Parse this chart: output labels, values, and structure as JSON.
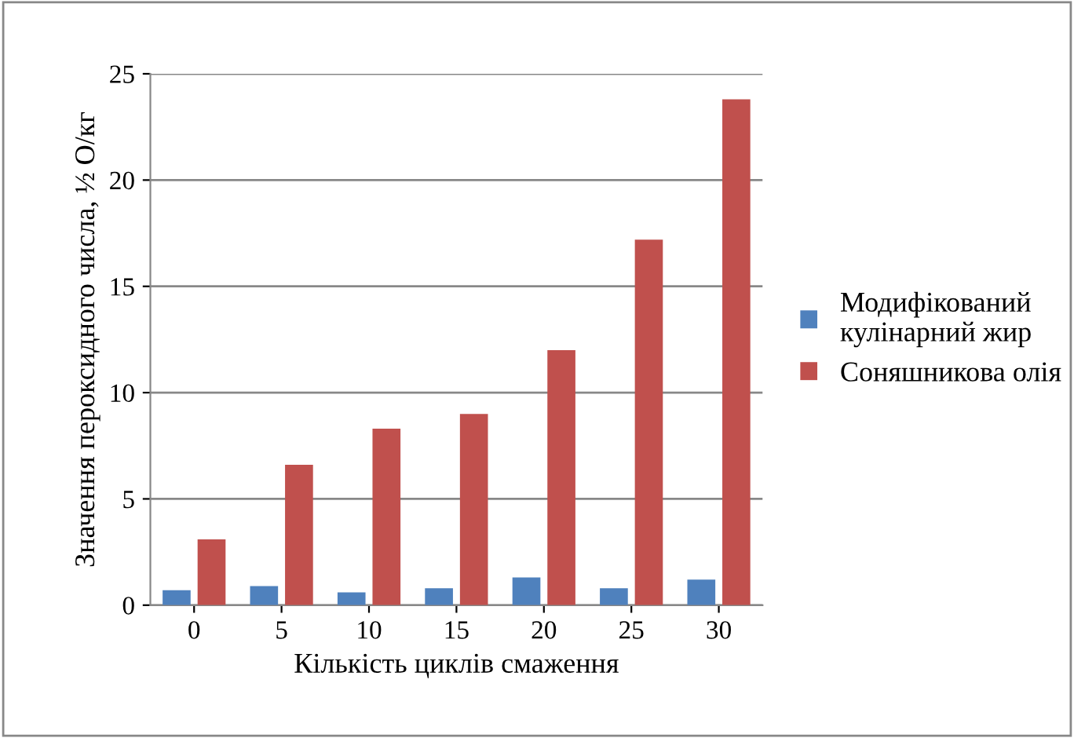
{
  "chart_data": {
    "type": "bar",
    "xlabel": "Кількість циклів смаження",
    "ylabel": "Значення пероксидного числа, ½ О/кг",
    "categories": [
      "0",
      "5",
      "10",
      "15",
      "20",
      "25",
      "30"
    ],
    "series": [
      {
        "name": "Модифікований кулінарний жир",
        "color": "#4f81bd",
        "values": [
          0.7,
          0.9,
          0.6,
          0.8,
          1.3,
          0.8,
          1.2
        ]
      },
      {
        "name": "Соняшникова олія",
        "color": "#c0504d",
        "values": [
          3.1,
          6.6,
          8.3,
          9.0,
          12.0,
          17.2,
          23.8
        ]
      }
    ],
    "ylim": [
      0,
      25
    ],
    "yticks": [
      0,
      5,
      10,
      15,
      20,
      25
    ],
    "grid": "y",
    "legend": "right"
  }
}
